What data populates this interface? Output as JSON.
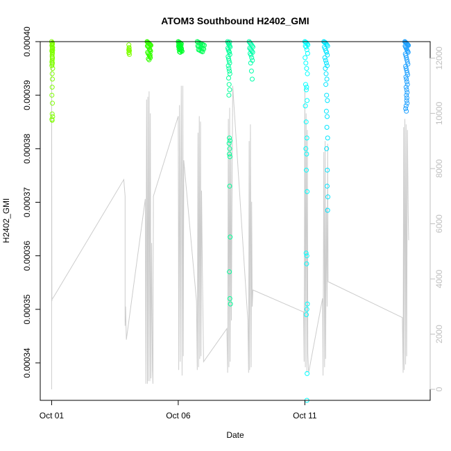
{
  "chart_data": {
    "type": "scatter",
    "title": "ATOM3 Southbound H2402_GMI",
    "xlabel": "Date",
    "ylabel": "H2402_GMI",
    "x_ticks": [
      {
        "label": "Oct 01",
        "value": 1
      },
      {
        "label": "Oct 06",
        "value": 6
      },
      {
        "label": "Oct 11",
        "value": 11
      }
    ],
    "xlim": [
      0.55,
      15.95
    ],
    "y_ticks": [
      0.00034,
      0.00035,
      0.00036,
      0.00037,
      0.00038,
      0.00039,
      0.0004
    ],
    "y_tick_labels": [
      "0.00034",
      "0.00035",
      "0.00036",
      "0.00037",
      "0.00038",
      "0.00039",
      "0.00040"
    ],
    "ylim": [
      0.000333,
      0.0004
    ],
    "y2_ticks": [
      0,
      2000,
      4000,
      6000,
      8000,
      10000,
      12000
    ],
    "y2lim": [
      -400,
      12600
    ],
    "colors": {
      "axis": "#000000",
      "secondary_axis": "#bfbfbf",
      "altitude_line": "#cccccc",
      "point_palette": [
        "#7fff00",
        "#00ff00",
        "#00ff7f",
        "#00ffff",
        "#0080ff"
      ]
    },
    "series": [
      {
        "color": "#7fff00",
        "x": [
          1.0,
          1.02,
          1.03,
          1.01,
          1.02,
          1.03,
          1.02,
          1.04,
          1.01,
          1.03,
          1.02,
          1.03,
          1.02,
          1.03,
          1.01,
          1.04,
          1.02,
          1.03,
          1.02,
          1.01,
          1.03,
          1.02,
          1.04,
          1.01,
          1.02,
          1.03,
          1.02,
          1.04,
          1.01,
          1.03,
          1.02,
          1.03,
          1.01,
          1.02,
          4.05,
          4.06,
          4.05,
          4.07,
          4.06,
          4.05,
          4.07,
          4.06,
          4.05
        ],
        "y": [
          0.0004,
          0.0003997,
          0.0003995,
          0.0003993,
          0.000399,
          0.0003988,
          0.0003986,
          0.0003984,
          0.0003982,
          0.000398,
          0.0003975,
          0.000397,
          0.0003965,
          0.000396,
          0.0003955,
          0.000395,
          0.000394,
          0.000393,
          0.0003915,
          0.00039,
          0.0003885,
          0.0003865,
          0.000386,
          0.0003855,
          0.0003853,
          0.0003998,
          0.0003994,
          0.0003989,
          0.0003983,
          0.0003978,
          0.0003972,
          0.0003968,
          0.0003962,
          0.0003958,
          0.0003994,
          0.0003987,
          0.0003985,
          0.0003983,
          0.000398,
          0.0003979,
          0.0003976,
          0.0003989,
          0.0003984
        ]
      },
      {
        "color": "#33ff00",
        "x": [
          4.77,
          4.79,
          4.82,
          4.84,
          4.86,
          4.88,
          4.9,
          4.92,
          4.78,
          4.8,
          4.83,
          4.85,
          4.87,
          4.89,
          4.91,
          4.79,
          4.81,
          4.84,
          4.86,
          4.88,
          4.9,
          4.82,
          4.85,
          4.87,
          4.89
        ],
        "y": [
          0.0004,
          0.0003999,
          0.0003998,
          0.0003997,
          0.0003996,
          0.0003995,
          0.0003994,
          0.0003993,
          0.0003992,
          0.0003991,
          0.000399,
          0.0003988,
          0.0003986,
          0.0003984,
          0.0003982,
          0.000398,
          0.0003978,
          0.0003976,
          0.0003974,
          0.0003972,
          0.000397,
          0.0003968,
          0.0003966,
          0.0003985,
          0.0003975
        ]
      },
      {
        "color": "#00ff2a",
        "x": [
          6.0,
          6.03,
          6.06,
          6.09,
          6.12,
          6.02,
          6.05,
          6.08,
          6.11,
          6.01,
          6.04,
          6.07,
          6.1,
          6.13,
          6.03,
          6.06,
          6.09,
          6.12,
          6.15,
          6.05,
          6.08
        ],
        "y": [
          0.0004,
          0.0003999,
          0.0003998,
          0.0003997,
          0.0003996,
          0.0003995,
          0.0003994,
          0.0003993,
          0.0003992,
          0.0003991,
          0.000399,
          0.0003989,
          0.0003988,
          0.0003987,
          0.0003986,
          0.0003985,
          0.0003984,
          0.0003983,
          0.0003982,
          0.0003981,
          0.000398
        ]
      },
      {
        "color": "#00ff55",
        "x": [
          6.75,
          6.79,
          6.83,
          6.87,
          6.91,
          6.95,
          6.99,
          7.03,
          6.77,
          6.81,
          6.85,
          6.89,
          6.93,
          6.97,
          7.01,
          6.8,
          6.84,
          6.88,
          6.92,
          6.96
        ],
        "y": [
          0.0004,
          0.0003999,
          0.0003998,
          0.0003997,
          0.0003996,
          0.0003995,
          0.0003994,
          0.0003993,
          0.0003992,
          0.0003991,
          0.000399,
          0.0003989,
          0.0003988,
          0.0003987,
          0.0003986,
          0.0003985,
          0.0003984,
          0.0003983,
          0.0003982,
          0.0003981
        ]
      },
      {
        "color": "#00ff99",
        "x": [
          7.95,
          7.97,
          7.99,
          8.01,
          8.03,
          8.05,
          7.96,
          7.98,
          8.0,
          8.02,
          8.04,
          7.97,
          7.99,
          8.01,
          8.03,
          7.98,
          8.0,
          8.02,
          8.04,
          7.99,
          8.01,
          8.03,
          8.0,
          8.02,
          8.04,
          8.01,
          8.03,
          8.02,
          8.04,
          8.03,
          8.05,
          8.02,
          8.04,
          8.06,
          8.03
        ],
        "y": [
          0.0004,
          0.0003998,
          0.0003996,
          0.0003994,
          0.0003992,
          0.000399,
          0.0003988,
          0.0003985,
          0.0003982,
          0.000398,
          0.0003976,
          0.0003972,
          0.0003968,
          0.0003964,
          0.000396,
          0.0003955,
          0.000395,
          0.0003945,
          0.000394,
          0.0003932,
          0.000392,
          0.000391,
          0.00039,
          0.000382,
          0.0003815,
          0.000381,
          0.00038,
          0.000379,
          0.0003785,
          0.000373,
          0.0003635,
          0.000357,
          0.000352,
          0.000351,
          0.0003999
        ]
      },
      {
        "color": "#00ffaa",
        "x": [
          8.8,
          8.83,
          8.86,
          8.89,
          8.92,
          8.95,
          8.82,
          8.85,
          8.88,
          8.91,
          8.94,
          8.84,
          8.87,
          8.9,
          8.93,
          8.86,
          8.89,
          8.92
        ],
        "y": [
          0.0004,
          0.0003998,
          0.0003996,
          0.0003994,
          0.0003992,
          0.000399,
          0.0003988,
          0.0003986,
          0.0003984,
          0.0003982,
          0.000398,
          0.0003978,
          0.0003975,
          0.000397,
          0.0003965,
          0.000396,
          0.0003945,
          0.000393
        ]
      },
      {
        "color": "#00ffff",
        "x": [
          11.0,
          11.03,
          11.06,
          11.09,
          11.12,
          11.02,
          11.05,
          11.08,
          11.11,
          11.01,
          11.04,
          11.07,
          11.1,
          11.03,
          11.06,
          11.09,
          11.02,
          11.05,
          11.08,
          11.04,
          11.07,
          11.06,
          11.09,
          11.05,
          11.08,
          11.07,
          11.1,
          11.08,
          11.06,
          11.09,
          11.08,
          11.07
        ],
        "y": [
          0.0004,
          0.0003999,
          0.0003998,
          0.0003996,
          0.0003994,
          0.0003992,
          0.000399,
          0.0003985,
          0.0003978,
          0.000397,
          0.000396,
          0.000395,
          0.000394,
          0.000392,
          0.000391,
          0.000389,
          0.000388,
          0.000385,
          0.000382,
          0.00038,
          0.000379,
          0.000376,
          0.000372,
          0.0003605,
          0.00036,
          0.0003585,
          0.000351,
          0.00035,
          0.000349,
          0.000338,
          0.000333,
          0.0003915
        ]
      },
      {
        "color": "#00e5ff",
        "x": [
          11.75,
          11.78,
          11.81,
          11.84,
          11.87,
          11.9,
          11.77,
          11.8,
          11.83,
          11.86,
          11.89,
          11.79,
          11.82,
          11.85,
          11.88,
          11.81,
          11.84,
          11.87,
          11.83,
          11.86,
          11.89,
          11.85,
          11.88,
          11.87,
          11.9,
          11.86,
          11.89,
          11.88,
          11.91,
          11.9
        ],
        "y": [
          0.0004,
          0.0003999,
          0.0003998,
          0.0003996,
          0.0003994,
          0.0003992,
          0.000399,
          0.0003987,
          0.0003983,
          0.000398,
          0.0003975,
          0.000397,
          0.0003965,
          0.000396,
          0.0003955,
          0.000395,
          0.000394,
          0.000393,
          0.000392,
          0.00039,
          0.000389,
          0.000387,
          0.000386,
          0.000384,
          0.000382,
          0.00038,
          0.000376,
          0.000373,
          0.000371,
          0.0003685
        ]
      },
      {
        "color": "#1ea0ff",
        "x": [
          14.95,
          14.97,
          14.99,
          15.01,
          15.03,
          15.05,
          15.07,
          15.09,
          14.96,
          14.98,
          15.0,
          15.02,
          15.04,
          15.06,
          15.08,
          14.97,
          14.99,
          15.01,
          15.03,
          15.05,
          15.07,
          14.98,
          15.0,
          15.02,
          15.04,
          15.06,
          14.99,
          15.01,
          15.03,
          15.05,
          15.0,
          15.02,
          15.04,
          15.01,
          15.03,
          15.02,
          15.04,
          15.0,
          14.98,
          15.01
        ],
        "y": [
          0.0004,
          0.0003999,
          0.0003998,
          0.0003997,
          0.0003996,
          0.0003995,
          0.0003994,
          0.0003993,
          0.0003992,
          0.000399,
          0.0003988,
          0.0003986,
          0.0003984,
          0.0003982,
          0.000398,
          0.0003977,
          0.0003974,
          0.000397,
          0.0003966,
          0.0003962,
          0.0003958,
          0.0003954,
          0.000395,
          0.0003946,
          0.0003942,
          0.0003938,
          0.0003934,
          0.000393,
          0.0003925,
          0.000392,
          0.0003915,
          0.000391,
          0.0003905,
          0.00039,
          0.0003895,
          0.000389,
          0.0003885,
          0.000388,
          0.0003875,
          0.000387
        ]
      }
    ],
    "altitude": {
      "color": "#cccccc",
      "y2lim": [
        -400,
        12600
      ],
      "x": [
        1.0,
        1.0,
        1.0,
        1.01,
        1.02,
        1.05,
        3.85,
        3.9,
        3.9,
        3.92,
        3.95,
        4.7,
        4.72,
        4.75,
        4.78,
        4.8,
        4.82,
        4.85,
        4.88,
        4.9,
        4.92,
        4.95,
        4.98,
        5.0,
        5.02,
        6.0,
        6.02,
        6.05,
        6.08,
        6.1,
        6.12,
        6.15,
        6.18,
        6.2,
        6.22,
        6.72,
        6.75,
        6.78,
        6.8,
        6.83,
        6.85,
        6.88,
        6.9,
        6.92,
        6.95,
        7.0,
        7.92,
        7.95,
        7.98,
        8.0,
        8.03,
        8.05,
        8.08,
        8.1,
        8.12,
        8.15,
        8.75,
        8.78,
        8.8,
        8.82,
        8.85,
        8.88,
        8.9,
        8.92,
        8.95,
        10.95,
        10.97,
        11.0,
        11.02,
        11.05,
        11.08,
        11.1,
        11.12,
        11.15,
        11.7,
        11.72,
        11.75,
        11.78,
        11.8,
        11.82,
        11.85,
        11.88,
        11.9,
        11.92,
        14.85,
        14.88,
        14.9,
        14.92,
        14.95,
        14.98,
        15.0,
        15.02,
        15.05,
        15.08,
        15.1
      ],
      "y": [
        0,
        5400,
        12000,
        3200,
        3300,
        3300,
        7600,
        7000,
        2300,
        3000,
        1800,
        6900,
        200,
        10500,
        200,
        10600,
        300,
        10800,
        300,
        10000,
        400,
        5300,
        700,
        200,
        7000,
        9900,
        700,
        10300,
        1000,
        7200,
        11000,
        500,
        11000,
        1200,
        8300,
        3200,
        700,
        9300,
        800,
        9900,
        1100,
        9700,
        1200,
        7200,
        4500,
        1000,
        2200,
        600,
        9800,
        800,
        10200,
        1000,
        9000,
        2500,
        6500,
        11000,
        2500,
        600,
        9000,
        700,
        9600,
        800,
        6800,
        3000,
        3600,
        2800,
        1000,
        11000,
        800,
        10000,
        600,
        9400,
        1300,
        600,
        3300,
        500,
        8600,
        800,
        9000,
        1100,
        6600,
        3000,
        8900,
        3900,
        2600,
        600,
        9500,
        700,
        9800,
        900,
        9600,
        1200,
        9400,
        6400,
        5400
      ]
    }
  }
}
